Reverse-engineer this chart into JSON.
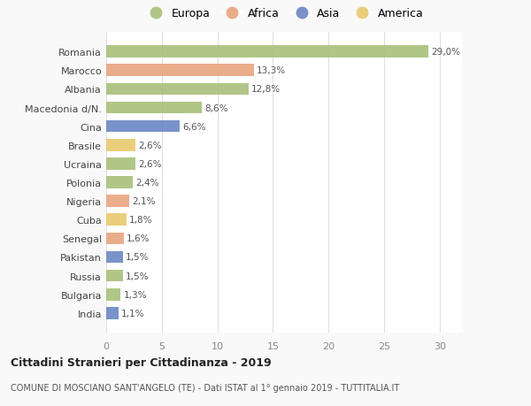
{
  "countries": [
    "Romania",
    "Marocco",
    "Albania",
    "Macedonia d/N.",
    "Cina",
    "Brasile",
    "Ucraina",
    "Polonia",
    "Nigeria",
    "Cuba",
    "Senegal",
    "Pakistan",
    "Russia",
    "Bulgaria",
    "India"
  ],
  "values": [
    29.0,
    13.3,
    12.8,
    8.6,
    6.6,
    2.6,
    2.6,
    2.4,
    2.1,
    1.8,
    1.6,
    1.5,
    1.5,
    1.3,
    1.1
  ],
  "labels": [
    "29,0%",
    "13,3%",
    "12,8%",
    "8,6%",
    "6,6%",
    "2,6%",
    "2,6%",
    "2,4%",
    "2,1%",
    "1,8%",
    "1,6%",
    "1,5%",
    "1,5%",
    "1,3%",
    "1,1%"
  ],
  "continents": [
    "Europa",
    "Africa",
    "Europa",
    "Europa",
    "Asia",
    "America",
    "Europa",
    "Europa",
    "Africa",
    "America",
    "Africa",
    "Asia",
    "Europa",
    "Europa",
    "Asia"
  ],
  "colors": {
    "Europa": "#a8c07a",
    "Africa": "#e8a47e",
    "Asia": "#6b86c4",
    "America": "#e8c96e"
  },
  "title_bold": "Cittadini Stranieri per Cittadinanza - 2019",
  "subtitle": "COMUNE DI MOSCIANO SANT'ANGELO (TE) - Dati ISTAT al 1° gennaio 2019 - TUTTITALIA.IT",
  "xlim": [
    0,
    32
  ],
  "xticks": [
    0,
    5,
    10,
    15,
    20,
    25,
    30
  ],
  "background_color": "#f9f9f9",
  "plot_bg_color": "#ffffff",
  "grid_color": "#e0e0e0",
  "legend_order": [
    "Europa",
    "Africa",
    "Asia",
    "America"
  ]
}
